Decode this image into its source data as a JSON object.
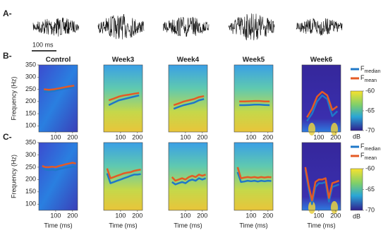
{
  "figure": {
    "row_labels": [
      "A-",
      "B-",
      "C-"
    ],
    "scale_bar": "100 ms",
    "legend": {
      "symbol": "F",
      "entries": [
        {
          "name": "median",
          "color": "#1f78c8"
        },
        {
          "name": "mean",
          "color": "#e45a24"
        }
      ]
    },
    "colorbar": {
      "label": "dB",
      "lim": [
        -70,
        -60
      ],
      "ticks": [
        -60,
        -65,
        -70
      ]
    }
  },
  "chart_data": [
    {
      "type": "line",
      "title": "Control",
      "x": [
        30,
        60,
        90,
        120,
        150,
        180,
        210
      ],
      "series": [
        {
          "color": "#1f78c8",
          "values": [
            240,
            240,
            243,
            248,
            252,
            255,
            258
          ]
        },
        {
          "color": "#e45a24",
          "values": [
            250,
            248,
            250,
            254,
            258,
            262,
            265
          ]
        }
      ],
      "xlim": [
        0,
        230
      ],
      "ylim": [
        75,
        350
      ],
      "xticks": [
        100,
        200
      ],
      "yticks": [
        100,
        150,
        200,
        250,
        300,
        350
      ],
      "ylabel": "Frequency (Hz)"
    },
    {
      "type": "line",
      "title": "Week3",
      "x": [
        30,
        60,
        90,
        120,
        150,
        180,
        210
      ],
      "series": [
        {
          "color": "#1f78c8",
          "values": [
            185,
            195,
            205,
            210,
            215,
            220,
            225
          ]
        },
        {
          "color": "#e45a24",
          "values": [
            205,
            212,
            220,
            225,
            228,
            232,
            235
          ]
        }
      ],
      "xlim": [
        0,
        230
      ],
      "ylim": [
        75,
        350
      ],
      "xticks": [
        100,
        200
      ]
    },
    {
      "type": "line",
      "title": "Week4",
      "x": [
        30,
        60,
        90,
        120,
        150,
        180,
        210
      ],
      "series": [
        {
          "color": "#1f78c8",
          "values": [
            170,
            178,
            185,
            190,
            195,
            205,
            210
          ]
        },
        {
          "color": "#e45a24",
          "values": [
            185,
            192,
            200,
            205,
            210,
            218,
            222
          ]
        }
      ],
      "xlim": [
        0,
        230
      ],
      "ylim": [
        75,
        350
      ],
      "xticks": [
        100,
        200
      ]
    },
    {
      "type": "line",
      "title": "Week5",
      "x": [
        30,
        60,
        90,
        120,
        150,
        180,
        210
      ],
      "series": [
        {
          "color": "#1f78c8",
          "values": [
            185,
            185,
            186,
            187,
            187,
            186,
            185
          ]
        },
        {
          "color": "#e45a24",
          "values": [
            200,
            200,
            201,
            202,
            202,
            200,
            200
          ]
        }
      ],
      "xlim": [
        0,
        230
      ],
      "ylim": [
        75,
        350
      ],
      "xticks": [
        100,
        200
      ]
    },
    {
      "type": "line",
      "title": "Week6",
      "x": [
        30,
        60,
        90,
        120,
        150,
        180,
        210
      ],
      "series": [
        {
          "color": "#1f78c8",
          "values": [
            120,
            150,
            200,
            225,
            210,
            140,
            160
          ]
        },
        {
          "color": "#e45a24",
          "values": [
            135,
            170,
            220,
            240,
            225,
            165,
            180
          ]
        }
      ],
      "xlim": [
        0,
        230
      ],
      "ylim": [
        75,
        350
      ],
      "xticks": [
        100,
        200
      ]
    },
    {
      "type": "line",
      "x": [
        20,
        40,
        60,
        80,
        100,
        120,
        140,
        160,
        180,
        200,
        220
      ],
      "series": [
        {
          "color": "#1f78c8",
          "values": [
            245,
            240,
            238,
            240,
            238,
            242,
            245,
            248,
            250,
            252,
            250
          ]
        },
        {
          "color": "#e45a24",
          "values": [
            255,
            250,
            250,
            252,
            250,
            255,
            258,
            262,
            265,
            268,
            265
          ]
        }
      ],
      "xlim": [
        0,
        230
      ],
      "ylim": [
        75,
        350
      ],
      "xticks": [
        100,
        200
      ],
      "yticks": [
        100,
        150,
        200,
        250,
        300,
        350
      ],
      "ylabel": "Frequency (Hz)",
      "xlabel": "Time (ms)"
    },
    {
      "type": "line",
      "x": [
        20,
        40,
        60,
        80,
        100,
        120,
        140,
        160,
        180,
        200,
        220
      ],
      "series": [
        {
          "color": "#1f78c8",
          "values": [
            225,
            185,
            190,
            195,
            200,
            205,
            210,
            215,
            220,
            220,
            222
          ]
        },
        {
          "color": "#e45a24",
          "values": [
            245,
            205,
            210,
            215,
            220,
            225,
            228,
            230,
            235,
            238,
            240
          ]
        }
      ],
      "xlim": [
        0,
        230
      ],
      "ylim": [
        75,
        350
      ],
      "xticks": [
        100,
        200
      ],
      "xlabel": "Time (ms)"
    },
    {
      "type": "line",
      "x": [
        20,
        40,
        60,
        80,
        100,
        120,
        140,
        160,
        180,
        200,
        220
      ],
      "series": [
        {
          "color": "#1f78c8",
          "values": [
            190,
            180,
            185,
            190,
            185,
            195,
            200,
            195,
            205,
            200,
            205
          ]
        },
        {
          "color": "#e45a24",
          "values": [
            210,
            195,
            200,
            205,
            200,
            210,
            215,
            210,
            220,
            215,
            220
          ]
        }
      ],
      "xlim": [
        0,
        230
      ],
      "ylim": [
        75,
        350
      ],
      "xticks": [
        100,
        200
      ],
      "xlabel": "Time (ms)"
    },
    {
      "type": "line",
      "x": [
        20,
        40,
        60,
        80,
        100,
        120,
        140,
        160,
        180,
        200,
        220
      ],
      "series": [
        {
          "color": "#1f78c8",
          "values": [
            230,
            190,
            192,
            195,
            193,
            195,
            192,
            195,
            193,
            195,
            194
          ]
        },
        {
          "color": "#e45a24",
          "values": [
            250,
            205,
            208,
            210,
            208,
            210,
            207,
            210,
            208,
            210,
            209
          ]
        }
      ],
      "xlim": [
        0,
        230
      ],
      "ylim": [
        75,
        350
      ],
      "xticks": [
        100,
        200
      ],
      "xlabel": "Time (ms)"
    },
    {
      "type": "line",
      "x": [
        20,
        40,
        60,
        80,
        100,
        120,
        140,
        160,
        180,
        200,
        220
      ],
      "series": [
        {
          "color": "#1f78c8",
          "values": [
            240,
            160,
            100,
            170,
            185,
            185,
            190,
            110,
            170,
            175,
            180
          ]
        },
        {
          "color": "#e45a24",
          "values": [
            250,
            175,
            115,
            190,
            200,
            200,
            205,
            125,
            185,
            190,
            195
          ]
        }
      ],
      "xlim": [
        0,
        230
      ],
      "ylim": [
        75,
        350
      ],
      "xticks": [
        100,
        200
      ],
      "xlabel": "Time (ms)"
    }
  ]
}
